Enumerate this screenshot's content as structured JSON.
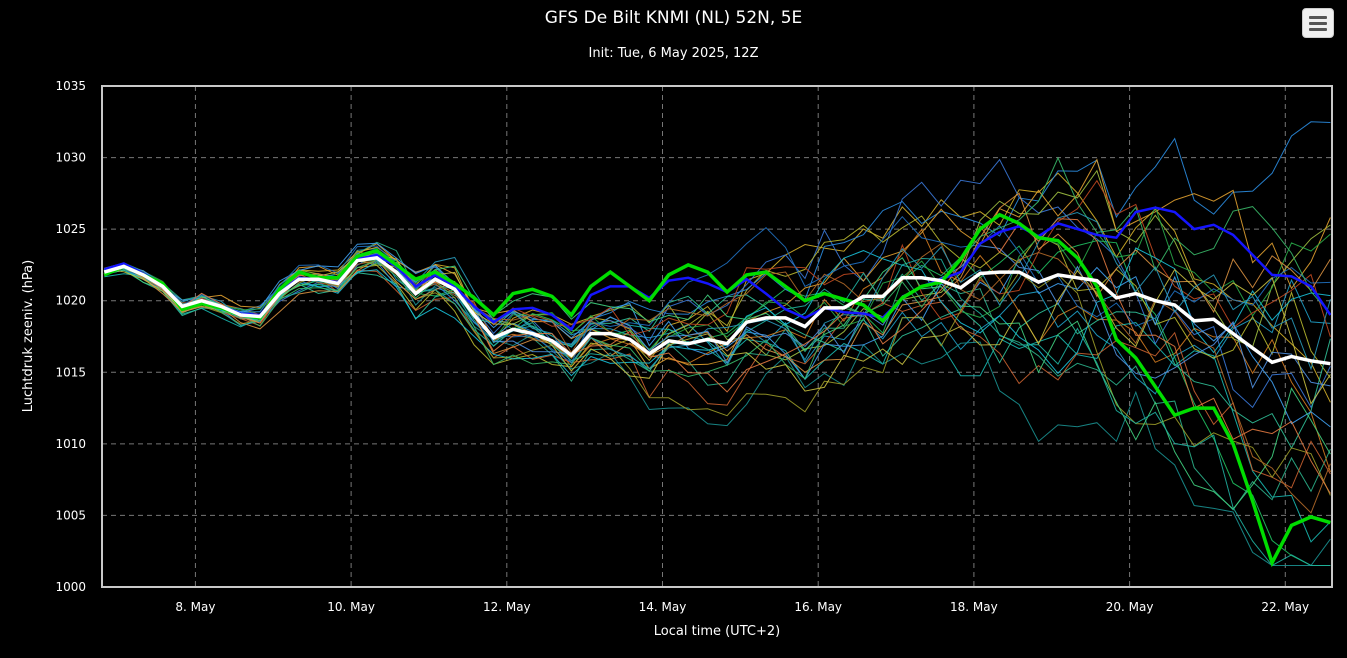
{
  "chart_data": {
    "type": "line",
    "title": "GFS De Bilt KNMI (NL) 52N, 5E",
    "subtitle": "Init: Tue, 6 May 2025, 12Z",
    "xlabel": "Local time (UTC+2)",
    "ylabel": "Luchtdruk zeeniv. (hPa)",
    "ylim": [
      1000,
      1035
    ],
    "yticks": [
      1000,
      1005,
      1010,
      1015,
      1020,
      1025,
      1030,
      1035
    ],
    "xlim": [
      6.8,
      22.6
    ],
    "xticks": [
      {
        "label": "8. May",
        "x": 8
      },
      {
        "label": "10. May",
        "x": 10
      },
      {
        "label": "12. May",
        "x": 12
      },
      {
        "label": "14. May",
        "x": 14
      },
      {
        "label": "16. May",
        "x": 16
      },
      {
        "label": "18. May",
        "x": 18
      },
      {
        "label": "20. May",
        "x": 20
      },
      {
        "label": "22. May",
        "x": 22
      }
    ],
    "grid": true,
    "legend": "none",
    "x_start": 6.83,
    "x_step": 0.25,
    "series": [
      {
        "role": "mean",
        "color": "#ffffff",
        "values": [
          1022,
          1022.4,
          1021.8,
          1021,
          1019.6,
          1020,
          1019.6,
          1019,
          1018.9,
          1020.5,
          1021.5,
          1021.5,
          1021.2,
          1022.8,
          1023,
          1022,
          1020.5,
          1021.5,
          1020.8,
          1019,
          1017.4,
          1018,
          1017.7,
          1017.2,
          1016.2,
          1017.7,
          1017.7,
          1017.3,
          1016.3,
          1017.2,
          1017,
          1017.3,
          1017,
          1018.5,
          1018.8,
          1018.8,
          1018.2,
          1019.5,
          1019.5,
          1020.3,
          1020.3,
          1021.6,
          1021.6,
          1021.4,
          1020.9,
          1021.9,
          1022,
          1022,
          1021.3,
          1021.8,
          1021.6,
          1021.4,
          1020.2,
          1020.5,
          1020,
          1019.7,
          1018.6,
          1018.7,
          1017.7,
          1016.7,
          1015.7,
          1016.1,
          1015.8,
          1015.6
        ]
      },
      {
        "role": "control",
        "color": "#00dd00",
        "values": [
          1021.8,
          1022.4,
          1021.8,
          1021.2,
          1019.4,
          1019.8,
          1019.5,
          1019,
          1018.8,
          1020.8,
          1022,
          1021.6,
          1021.6,
          1023.1,
          1023.5,
          1022.5,
          1021.5,
          1022,
          1021.2,
          1020.2,
          1019,
          1020.5,
          1020.8,
          1020.3,
          1019,
          1021,
          1022,
          1021,
          1020,
          1021.8,
          1022.5,
          1022,
          1020.6,
          1021.8,
          1022,
          1021,
          1020,
          1020.5,
          1020.1,
          1019.7,
          1018.6,
          1020.2,
          1021,
          1021.3,
          1022.9,
          1025,
          1026,
          1025.4,
          1024.4,
          1024.2,
          1023,
          1021,
          1017.3,
          1016,
          1014,
          1012,
          1012.5,
          1012.5,
          1010,
          1006,
          1001.7,
          1004.3,
          1004.9,
          1004.5
        ]
      },
      {
        "role": "operational",
        "color": "#1515ff",
        "values": [
          1022.2,
          1022.6,
          1021.9,
          1021.2,
          1019.6,
          1019.9,
          1019.6,
          1019.1,
          1019,
          1020.6,
          1021.6,
          1021.5,
          1021.3,
          1022.9,
          1023.2,
          1022.4,
          1021,
          1021.8,
          1021,
          1019.6,
          1018.5,
          1019.4,
          1019.5,
          1019,
          1018,
          1020.4,
          1021,
          1021,
          1020.2,
          1021.4,
          1021.6,
          1021.2,
          1020.6,
          1021.5,
          1020.5,
          1019.4,
          1018.8,
          1019.5,
          1019.2,
          1019.1,
          1018.8,
          1020.2,
          1021,
          1021.5,
          1022,
          1024,
          1024.8,
          1025.2,
          1024.5,
          1025.4,
          1025,
          1024.6,
          1024.4,
          1026.2,
          1026.5,
          1026.2,
          1025,
          1025.3,
          1024.6,
          1023.2,
          1021.8,
          1021.7,
          1021,
          1019
        ]
      },
      {
        "role": "member",
        "color": "#1fa0c8",
        "seed": 11,
        "vol": 1.0,
        "drift": 0.0
      },
      {
        "role": "member",
        "color": "#d4b02a",
        "seed": 23,
        "vol": 1.1,
        "drift": 0.4
      },
      {
        "role": "member",
        "color": "#2bb08a",
        "seed": 37,
        "vol": 1.0,
        "drift": -0.6
      },
      {
        "role": "member",
        "color": "#d07a20",
        "seed": 41,
        "vol": 1.2,
        "drift": -0.2
      },
      {
        "role": "member",
        "color": "#3a78d8",
        "seed": 53,
        "vol": 0.9,
        "drift": 0.6
      },
      {
        "role": "member",
        "color": "#20c060",
        "seed": 67,
        "vol": 1.0,
        "drift": 0.1
      },
      {
        "role": "member",
        "color": "#18b8b0",
        "seed": 71,
        "vol": 1.1,
        "drift": -0.8
      },
      {
        "role": "member",
        "color": "#b8b830",
        "seed": 83,
        "vol": 1.0,
        "drift": 0.3
      },
      {
        "role": "member",
        "color": "#c86030",
        "seed": 97,
        "vol": 1.2,
        "drift": -0.4
      },
      {
        "role": "member",
        "color": "#2a8ce0",
        "seed": 101,
        "vol": 1.0,
        "drift": 0.8
      },
      {
        "role": "member",
        "color": "#30c098",
        "seed": 113,
        "vol": 1.1,
        "drift": -0.3
      },
      {
        "role": "member",
        "color": "#a0c040",
        "seed": 127,
        "vol": 0.9,
        "drift": 0.2
      },
      {
        "role": "member",
        "color": "#1a9090",
        "seed": 131,
        "vol": 1.0,
        "drift": -1.0
      },
      {
        "role": "member",
        "color": "#e0a030",
        "seed": 149,
        "vol": 1.2,
        "drift": 0.5
      },
      {
        "role": "member",
        "color": "#3fa0f0",
        "seed": 157,
        "vol": 1.0,
        "drift": -0.1
      },
      {
        "role": "member",
        "color": "#28a848",
        "seed": 163,
        "vol": 1.1,
        "drift": 0.7
      },
      {
        "role": "member",
        "color": "#c04820",
        "seed": 173,
        "vol": 1.0,
        "drift": -0.5
      },
      {
        "role": "member",
        "color": "#18c0d8",
        "seed": 181,
        "vol": 1.1,
        "drift": 0.0
      },
      {
        "role": "member",
        "color": "#9a9a28",
        "seed": 191,
        "vol": 1.0,
        "drift": -0.7
      },
      {
        "role": "member",
        "color": "#2070c0",
        "seed": 197,
        "vol": 1.2,
        "drift": 0.9
      },
      {
        "role": "member",
        "color": "#40d080",
        "seed": 211,
        "vol": 1.0,
        "drift": -0.2
      },
      {
        "role": "member",
        "color": "#d89040",
        "seed": 223,
        "vol": 1.1,
        "drift": 0.3
      },
      {
        "role": "member",
        "color": "#1fb0a0",
        "seed": 227,
        "vol": 1.0,
        "drift": -0.9
      },
      {
        "role": "member",
        "color": "#5090e0",
        "seed": 233,
        "vol": 0.9,
        "drift": 0.4
      },
      {
        "role": "member",
        "color": "#b06828",
        "seed": 241,
        "vol": 1.2,
        "drift": -0.3
      },
      {
        "role": "member",
        "color": "#38b868",
        "seed": 251,
        "vol": 1.0,
        "drift": 0.6
      },
      {
        "role": "member",
        "color": "#c8c040",
        "seed": 257,
        "vol": 1.1,
        "drift": -0.6
      },
      {
        "role": "member",
        "color": "#2898b8",
        "seed": 263,
        "vol": 1.0,
        "drift": 0.2
      },
      {
        "role": "member",
        "color": "#e07840",
        "seed": 269,
        "vol": 1.1,
        "drift": -0.1
      }
    ]
  }
}
